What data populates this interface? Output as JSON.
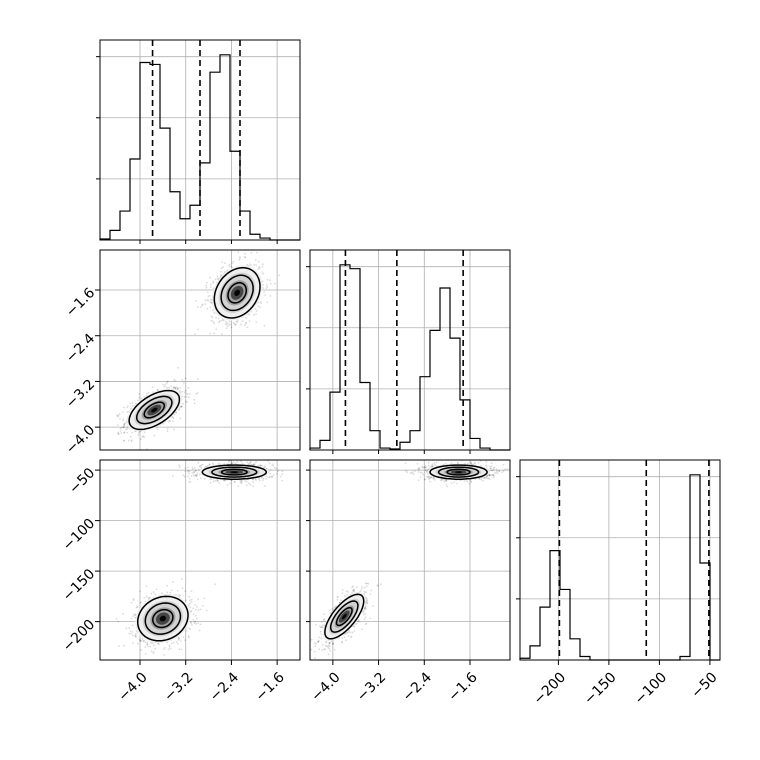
{
  "chart_data": {
    "type": "corner",
    "title": "",
    "parameters": [
      "",
      "",
      ""
    ],
    "ranges": [
      [
        -4.7,
        -1.2
      ],
      [
        -4.4,
        -0.9
      ],
      [
        -238,
        -40
      ]
    ],
    "ticks": [
      [
        -4.0,
        -3.2,
        -2.4,
        -1.6
      ],
      [
        -4.0,
        -3.2,
        -2.4,
        -1.6
      ],
      [
        -200,
        -150,
        -100,
        -50
      ]
    ],
    "tick_labels": [
      [
        "−4.0",
        "−3.2",
        "−2.4",
        "−1.6"
      ],
      [
        "−4.0",
        "−3.2",
        "−2.4",
        "−1.6"
      ],
      [
        "−200",
        "−150",
        "−100",
        "−50"
      ]
    ],
    "quantiles": [
      [
        -3.78,
        -2.95,
        -2.25
      ],
      [
        -3.78,
        -2.88,
        -1.72
      ],
      [
        -199,
        -113,
        -51
      ]
    ],
    "histograms": [
      {
        "bin_edges": [
          -4.7,
          -4.525,
          -4.35,
          -4.175,
          -4.0,
          -3.825,
          -3.65,
          -3.475,
          -3.3,
          -3.125,
          -2.95,
          -2.775,
          -2.6,
          -2.425,
          -2.25,
          -2.075,
          -1.9,
          -1.725,
          -1.55,
          -1.375,
          -1.2
        ],
        "counts": [
          0.5,
          5,
          15,
          42,
          92,
          91,
          58,
          25,
          11,
          18,
          40,
          87,
          96,
          46,
          15,
          3,
          1,
          0,
          0,
          0
        ]
      },
      {
        "bin_edges": [
          -4.4,
          -4.225,
          -4.05,
          -3.875,
          -3.7,
          -3.525,
          -3.35,
          -3.175,
          -3.0,
          -2.825,
          -2.65,
          -2.475,
          -2.3,
          -2.125,
          -1.95,
          -1.775,
          -1.6,
          -1.425,
          -1.25,
          -1.075,
          -0.9
        ],
        "counts": [
          1,
          5,
          30,
          96,
          94,
          35,
          10,
          1,
          0.5,
          4,
          10,
          38,
          62,
          84,
          58,
          26,
          6,
          1,
          0,
          0
        ]
      },
      {
        "bin_edges": [
          -238,
          -228.1,
          -218.2,
          -208.3,
          -198.4,
          -188.5,
          -178.6,
          -168.7,
          -158.8,
          -148.9,
          -139,
          -129.1,
          -119.2,
          -109.3,
          -99.4,
          -89.5,
          -79.6,
          -69.7,
          -59.8,
          -49.9,
          -40
        ],
        "counts": [
          1,
          8,
          30,
          62,
          40,
          12,
          2,
          0,
          0,
          0,
          0,
          0,
          0,
          0,
          0,
          0,
          2,
          105,
          55,
          0
        ]
      }
    ],
    "modes_2d": [
      {
        "pair": [
          0,
          1
        ],
        "modes": [
          {
            "mx": -3.75,
            "my": -3.7,
            "sx": 0.22,
            "sy": 0.17,
            "rho": 0.55
          },
          {
            "mx": -2.3,
            "my": -1.65,
            "sx": 0.2,
            "sy": 0.22,
            "rho": 0.25
          }
        ]
      },
      {
        "pair": [
          0,
          2
        ],
        "modes": [
          {
            "mx": -3.6,
            "my": -197,
            "sx": 0.22,
            "sy": 11,
            "rho": 0.15
          },
          {
            "mx": -2.35,
            "my": -52,
            "sx": 0.28,
            "sy": 3.5,
            "rho": 0.0
          }
        ]
      },
      {
        "pair": [
          1,
          2
        ],
        "modes": [
          {
            "mx": -3.8,
            "my": -195,
            "sx": 0.17,
            "sy": 11,
            "rho": 0.7
          },
          {
            "mx": -1.8,
            "my": -52,
            "sx": 0.25,
            "sy": 3.5,
            "rho": 0.0
          }
        ]
      }
    ]
  }
}
